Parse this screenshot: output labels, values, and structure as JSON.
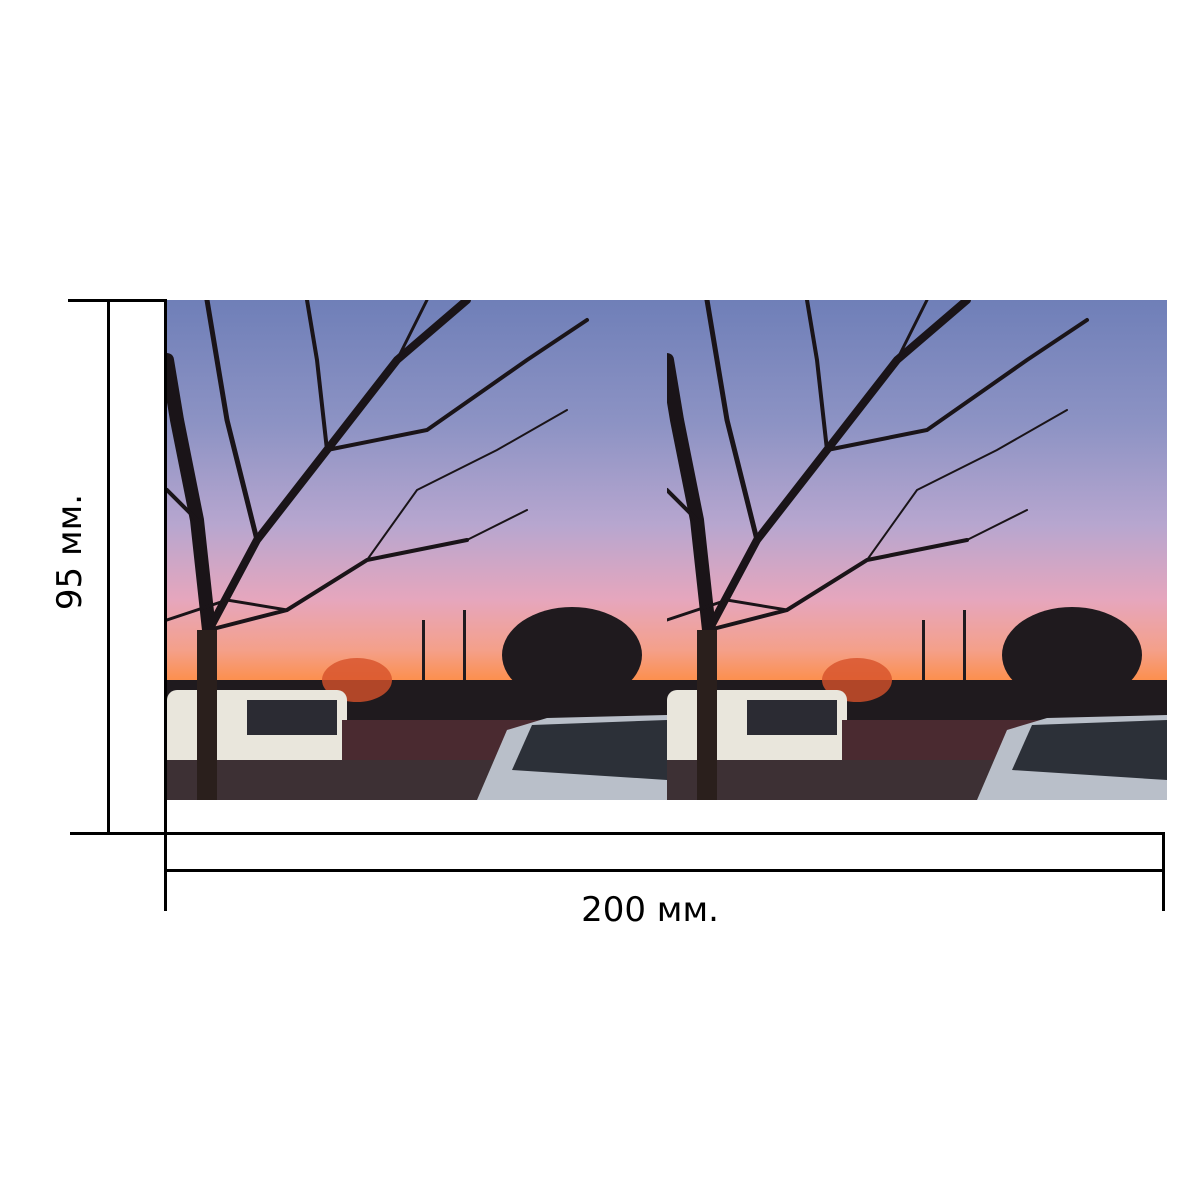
{
  "dimensions": {
    "height_label": "95 мм.",
    "width_label": "200 мм."
  },
  "photos": [
    {
      "subject": "sunset-parking-lot-tree"
    },
    {
      "subject": "sunset-parking-lot-tree"
    }
  ],
  "colors": {
    "line": "#000000",
    "sky_top": "#6f7fb8",
    "sunset": "#ff8a3a"
  }
}
